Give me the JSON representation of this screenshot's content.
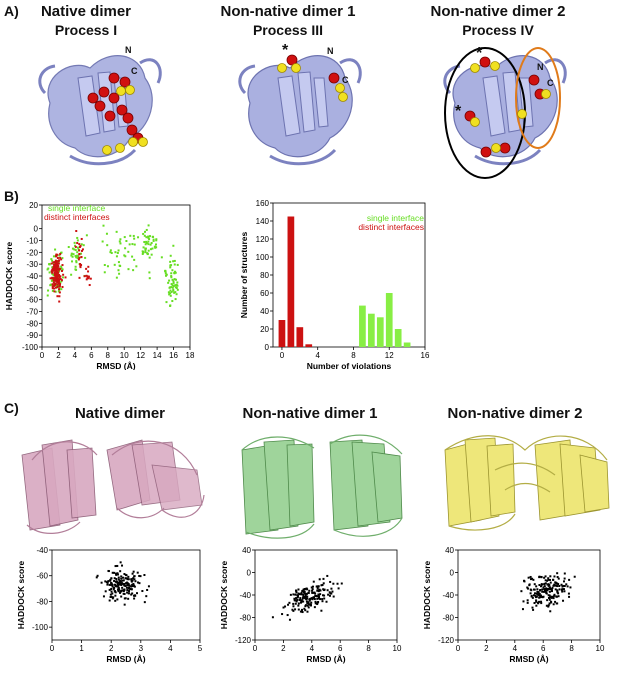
{
  "panel_a": {
    "letter": "A)",
    "columns": [
      {
        "title": "Native dimer",
        "subtitle": "Process I"
      },
      {
        "title": "Non-native dimer 1",
        "subtitle": "Process III"
      },
      {
        "title": "Non-native dimer 2",
        "subtitle": "Process IV"
      }
    ],
    "terminus_n": "N",
    "terminus_c": "C",
    "asterisk": "*",
    "colors": {
      "protein": "#aab0e0",
      "red_sphere": "#d01010",
      "yellow_sphere": "#f0e020",
      "black_ellipse": "#000000",
      "orange_ellipse": "#e07b1a"
    }
  },
  "panel_b": {
    "letter": "B)",
    "legend_single": "single interface",
    "legend_distinct": "distinct interfaces",
    "colors": {
      "single": "#66dd22",
      "distinct": "#cc1111"
    }
  },
  "panel_c": {
    "letter": "C)",
    "titles": [
      "Native dimer",
      "Non-native dimer 1",
      "Non-native dimer 2"
    ],
    "colors": [
      "#d8a8c0",
      "#9fd49b",
      "#eee77a"
    ]
  },
  "chart_data": [
    {
      "type": "scatter",
      "id": "b-left",
      "xlabel": "RMSD (Å)",
      "ylabel": "HADDOCK score",
      "xlim": [
        0,
        18
      ],
      "ylim": [
        -100,
        20
      ],
      "xticks": [
        "0",
        "2",
        "4",
        "6",
        "8",
        "10",
        "12",
        "14",
        "16",
        "18"
      ],
      "yticks": [
        "20",
        "0",
        "-10",
        "-20",
        "-30",
        "-40",
        "-50",
        "-60",
        "-70",
        "-80",
        "-90",
        "-100"
      ],
      "legend": "top-left",
      "series": [
        {
          "name": "single interface",
          "color": "#66dd22",
          "clusters": [
            [
              1.8,
              -38,
              0.6,
              12,
              80
            ],
            [
              4.2,
              -25,
              0.6,
              12,
              35
            ],
            [
              9.5,
              -18,
              1.2,
              12,
              25
            ],
            [
              13,
              -12,
              0.7,
              10,
              40
            ],
            [
              15.8,
              -45,
              0.5,
              14,
              60
            ],
            [
              11,
              -20,
              4,
              18,
              30
            ]
          ]
        },
        {
          "name": "distinct interfaces",
          "color": "#cc1111",
          "clusters": [
            [
              1.8,
              -38,
              0.5,
              11,
              150
            ],
            [
              4.6,
              -22,
              0.4,
              10,
              20
            ],
            [
              5.6,
              -40,
              0.4,
              6,
              12
            ]
          ]
        }
      ]
    },
    {
      "type": "bar",
      "id": "b-right",
      "xlabel": "Number of violations",
      "ylabel": "Number of structures",
      "xlim": [
        -1,
        16
      ],
      "ylim": [
        0,
        160
      ],
      "xticks": [
        "0",
        "4",
        "8",
        "12",
        "16"
      ],
      "yticks": [
        "0",
        "20",
        "40",
        "60",
        "80",
        "100",
        "120",
        "140",
        "160"
      ],
      "legend": "top-right",
      "series": [
        {
          "name": "single interface",
          "color": "#88ee44",
          "x": [
            9,
            10,
            11,
            12,
            13,
            14
          ],
          "values": [
            46,
            37,
            33,
            60,
            20,
            5
          ]
        },
        {
          "name": "distinct interfaces",
          "color": "#cc1111",
          "x": [
            0,
            1,
            2,
            3
          ],
          "values": [
            30,
            145,
            22,
            3
          ]
        }
      ]
    },
    {
      "type": "scatter",
      "id": "c-1",
      "xlabel": "RMSD (Å)",
      "ylabel": "HADDOCK score",
      "xlim": [
        0,
        5
      ],
      "ylim": [
        -110,
        -40
      ],
      "xticks": [
        "0",
        "1",
        "2",
        "3",
        "4",
        "5"
      ],
      "yticks": [
        "-40",
        "-60",
        "-80",
        "-100"
      ],
      "series": [
        {
          "name": "",
          "color": "#000000",
          "clusters": [
            [
              2.4,
              -68,
              0.5,
              9,
              180
            ]
          ]
        }
      ]
    },
    {
      "type": "scatter",
      "id": "c-2",
      "xlabel": "RMSD (Å)",
      "ylabel": "HADDOCK score",
      "xlim": [
        0,
        10
      ],
      "ylim": [
        -120,
        40
      ],
      "xticks": [
        "0",
        "2",
        "4",
        "6",
        "8",
        "10"
      ],
      "yticks": [
        "40",
        "0",
        "-40",
        "-80",
        "-120"
      ],
      "series": [
        {
          "name": "",
          "color": "#000000",
          "trend": [
            3.8,
            -45,
            1.2,
            18,
            180,
            10
          ]
        }
      ]
    },
    {
      "type": "scatter",
      "id": "c-3",
      "xlabel": "RMSD (Å)",
      "ylabel": "HADDOCK score",
      "xlim": [
        0,
        10
      ],
      "ylim": [
        -120,
        40
      ],
      "xticks": [
        "0",
        "2",
        "4",
        "6",
        "8",
        "10"
      ],
      "yticks": [
        "40",
        "0",
        "-40",
        "-80",
        "-120"
      ],
      "series": [
        {
          "name": "",
          "color": "#000000",
          "trend": [
            6.2,
            -32,
            1.1,
            20,
            180,
            6
          ]
        }
      ]
    }
  ]
}
